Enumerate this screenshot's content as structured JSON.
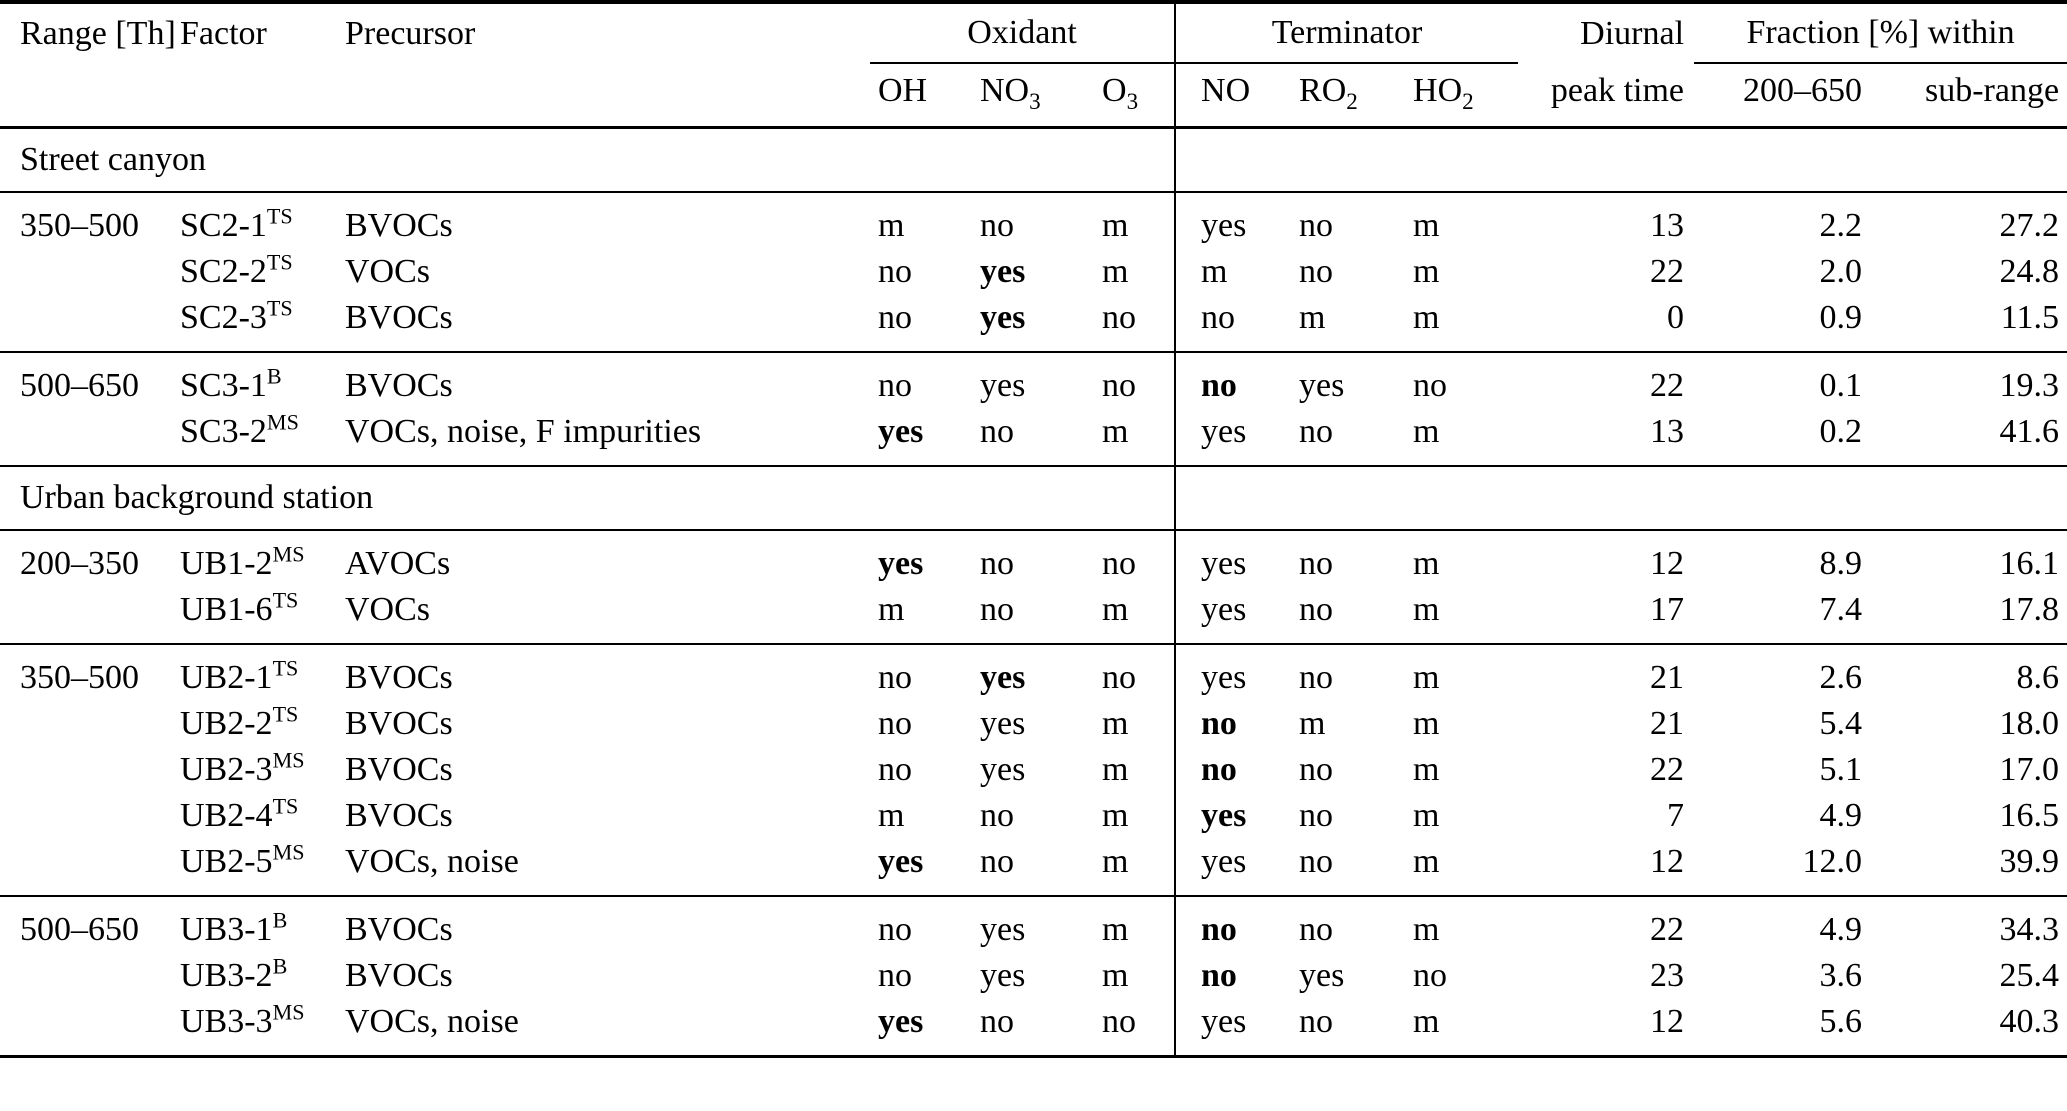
{
  "table": {
    "header": {
      "range": "Range [Th]",
      "factor": "Factor",
      "precursor": "Precursor",
      "groups": {
        "oxidant": "Oxidant",
        "terminator": "Terminator",
        "diurnal": "Diurnal",
        "fraction": "Fraction [%] within"
      },
      "sub": {
        "oh": {
          "base": "OH"
        },
        "no3": {
          "base": "NO",
          "sub": "3"
        },
        "o3": {
          "base": "O",
          "sub": "3"
        },
        "no": {
          "base": "NO"
        },
        "ro2": {
          "base": "RO",
          "sub": "2"
        },
        "ho2": {
          "base": "HO",
          "sub": "2"
        },
        "peak": "peak time",
        "f200": "200–650",
        "fsub": "sub-range"
      }
    },
    "rows": [
      {
        "type": "section",
        "label": "Street canyon"
      },
      {
        "type": "data",
        "range": "350–500",
        "factor": {
          "base": "SC2-1",
          "sup": "TS"
        },
        "precursor": "BVOCs",
        "oh": "m",
        "no3": "no",
        "o3": "m",
        "no": "yes",
        "ro2": "no",
        "ho2": "m",
        "peak": "13",
        "f200": "2.2",
        "fsub": "27.2"
      },
      {
        "type": "data",
        "range": "",
        "factor": {
          "base": "SC2-2",
          "sup": "TS"
        },
        "precursor": "VOCs",
        "oh": "no",
        "no3": {
          "v": "yes",
          "b": true
        },
        "o3": "m",
        "no": "m",
        "ro2": "no",
        "ho2": "m",
        "peak": "22",
        "f200": "2.0",
        "fsub": "24.8"
      },
      {
        "type": "data",
        "range": "",
        "factor": {
          "base": "SC2-3",
          "sup": "TS"
        },
        "precursor": "BVOCs",
        "oh": "no",
        "no3": {
          "v": "yes",
          "b": true
        },
        "o3": "no",
        "no": "no",
        "ro2": "m",
        "ho2": "m",
        "peak": "0",
        "f200": "0.9",
        "fsub": "11.5"
      },
      {
        "type": "data",
        "rule_above": true,
        "range": "500–650",
        "factor": {
          "base": "SC3-1",
          "sup": "B"
        },
        "precursor": "BVOCs",
        "oh": "no",
        "no3": "yes",
        "o3": "no",
        "no": {
          "v": "no",
          "b": true
        },
        "ro2": "yes",
        "ho2": "no",
        "peak": "22",
        "f200": "0.1",
        "fsub": "19.3"
      },
      {
        "type": "data",
        "range": "",
        "factor": {
          "base": "SC3-2",
          "sup": "MS"
        },
        "precursor": "VOCs, noise, F impurities",
        "oh": {
          "v": "yes",
          "b": true
        },
        "no3": "no",
        "o3": "m",
        "no": "yes",
        "ro2": "no",
        "ho2": "m",
        "peak": "13",
        "f200": "0.2",
        "fsub": "41.6"
      },
      {
        "type": "section",
        "label": "Urban background station"
      },
      {
        "type": "data",
        "range": "200–350",
        "factor": {
          "base": "UB1-2",
          "sup": "MS"
        },
        "precursor": "AVOCs",
        "oh": {
          "v": "yes",
          "b": true
        },
        "no3": "no",
        "o3": "no",
        "no": "yes",
        "ro2": "no",
        "ho2": "m",
        "peak": "12",
        "f200": "8.9",
        "fsub": "16.1"
      },
      {
        "type": "data",
        "range": "",
        "factor": {
          "base": "UB1-6",
          "sup": "TS"
        },
        "precursor": "VOCs",
        "oh": "m",
        "no3": "no",
        "o3": "m",
        "no": "yes",
        "ro2": "no",
        "ho2": "m",
        "peak": "17",
        "f200": "7.4",
        "fsub": "17.8"
      },
      {
        "type": "data",
        "rule_above": true,
        "range": "350–500",
        "factor": {
          "base": "UB2-1",
          "sup": "TS"
        },
        "precursor": "BVOCs",
        "oh": "no",
        "no3": {
          "v": "yes",
          "b": true
        },
        "o3": "no",
        "no": "yes",
        "ro2": "no",
        "ho2": "m",
        "peak": "21",
        "f200": "2.6",
        "fsub": "8.6"
      },
      {
        "type": "data",
        "range": "",
        "factor": {
          "base": "UB2-2",
          "sup": "TS"
        },
        "precursor": "BVOCs",
        "oh": "no",
        "no3": "yes",
        "o3": "m",
        "no": {
          "v": "no",
          "b": true
        },
        "ro2": "m",
        "ho2": "m",
        "peak": "21",
        "f200": "5.4",
        "fsub": "18.0"
      },
      {
        "type": "data",
        "range": "",
        "factor": {
          "base": "UB2-3",
          "sup": "MS"
        },
        "precursor": "BVOCs",
        "oh": "no",
        "no3": "yes",
        "o3": "m",
        "no": {
          "v": "no",
          "b": true
        },
        "ro2": "no",
        "ho2": "m",
        "peak": "22",
        "f200": "5.1",
        "fsub": "17.0"
      },
      {
        "type": "data",
        "range": "",
        "factor": {
          "base": "UB2-4",
          "sup": "TS"
        },
        "precursor": "BVOCs",
        "oh": "m",
        "no3": "no",
        "o3": "m",
        "no": {
          "v": "yes",
          "b": true
        },
        "ro2": "no",
        "ho2": "m",
        "peak": "7",
        "f200": "4.9",
        "fsub": "16.5"
      },
      {
        "type": "data",
        "range": "",
        "factor": {
          "base": "UB2-5",
          "sup": "MS"
        },
        "precursor": "VOCs, noise",
        "oh": {
          "v": "yes",
          "b": true
        },
        "no3": "no",
        "o3": "m",
        "no": "yes",
        "ro2": "no",
        "ho2": "m",
        "peak": "12",
        "f200": "12.0",
        "fsub": "39.9"
      },
      {
        "type": "data",
        "rule_above": true,
        "range": "500–650",
        "factor": {
          "base": "UB3-1",
          "sup": "B"
        },
        "precursor": "BVOCs",
        "oh": "no",
        "no3": "yes",
        "o3": "m",
        "no": {
          "v": "no",
          "b": true
        },
        "ro2": "no",
        "ho2": "m",
        "peak": "22",
        "f200": "4.9",
        "fsub": "34.3"
      },
      {
        "type": "data",
        "range": "",
        "factor": {
          "base": "UB3-2",
          "sup": "B"
        },
        "precursor": "BVOCs",
        "oh": "no",
        "no3": "yes",
        "o3": "m",
        "no": {
          "v": "no",
          "b": true
        },
        "ro2": "yes",
        "ho2": "no",
        "peak": "23",
        "f200": "3.6",
        "fsub": "25.4"
      },
      {
        "type": "data",
        "range": "",
        "factor": {
          "base": "UB3-3",
          "sup": "MS"
        },
        "precursor": "VOCs, noise",
        "oh": {
          "v": "yes",
          "b": true
        },
        "no3": "no",
        "o3": "no",
        "no": "yes",
        "ro2": "no",
        "ho2": "m",
        "peak": "12",
        "f200": "5.6",
        "fsub": "40.3"
      }
    ]
  }
}
